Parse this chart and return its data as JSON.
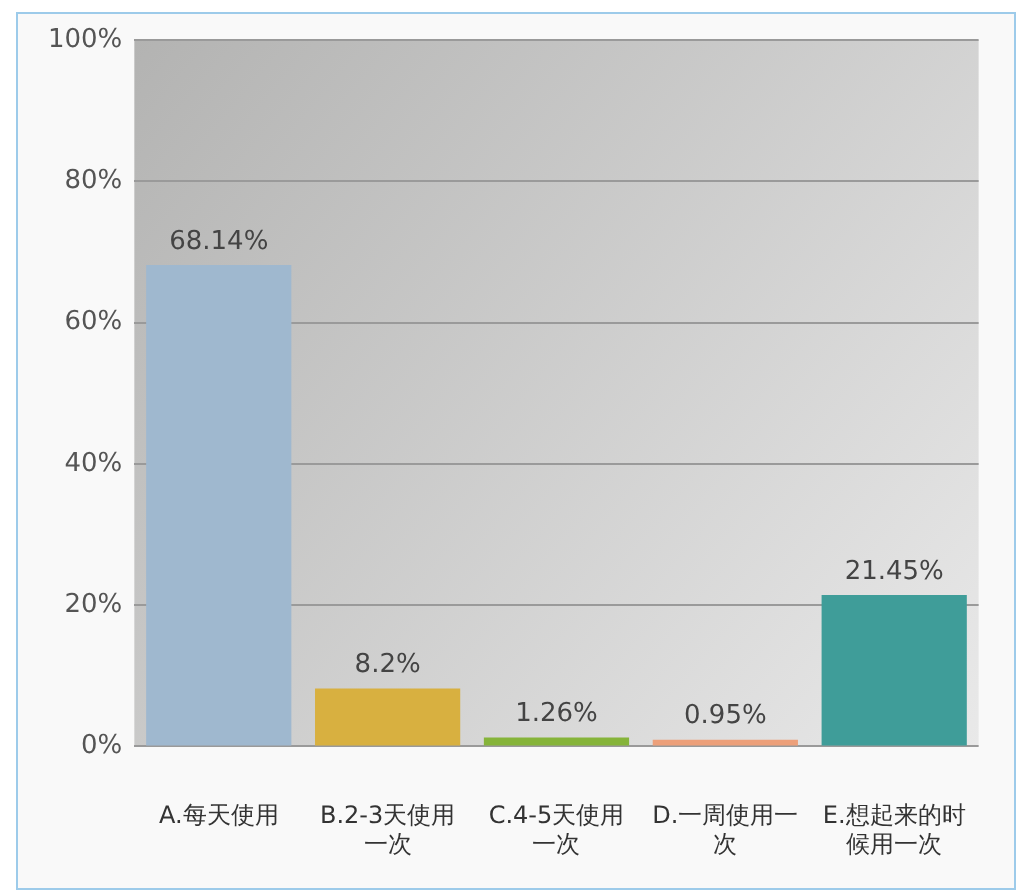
{
  "chart_data": {
    "type": "bar",
    "categories": [
      "A.每天使用",
      "B.2-3天使用一次",
      "C.4-5天使用一次",
      "D.一周使用一次",
      "E.想起来的时候用一次"
    ],
    "values": [
      68.14,
      8.2,
      1.26,
      0.95,
      21.45
    ],
    "colors": [
      "#9fb8cf",
      "#d8b040",
      "#86b43a",
      "#eda07a",
      "#3f9d99"
    ],
    "value_labels": [
      "68.14%",
      "8.2%",
      "1.26%",
      "0.95%",
      "21.45%"
    ],
    "ylim": [
      0,
      100
    ],
    "yticks": [
      {
        "value": 0,
        "label": "0%"
      },
      {
        "value": 20,
        "label": "20%"
      },
      {
        "value": 40,
        "label": "40%"
      },
      {
        "value": 60,
        "label": "60%"
      },
      {
        "value": 80,
        "label": "80%"
      },
      {
        "value": 100,
        "label": "100%"
      }
    ],
    "grid": "y"
  }
}
